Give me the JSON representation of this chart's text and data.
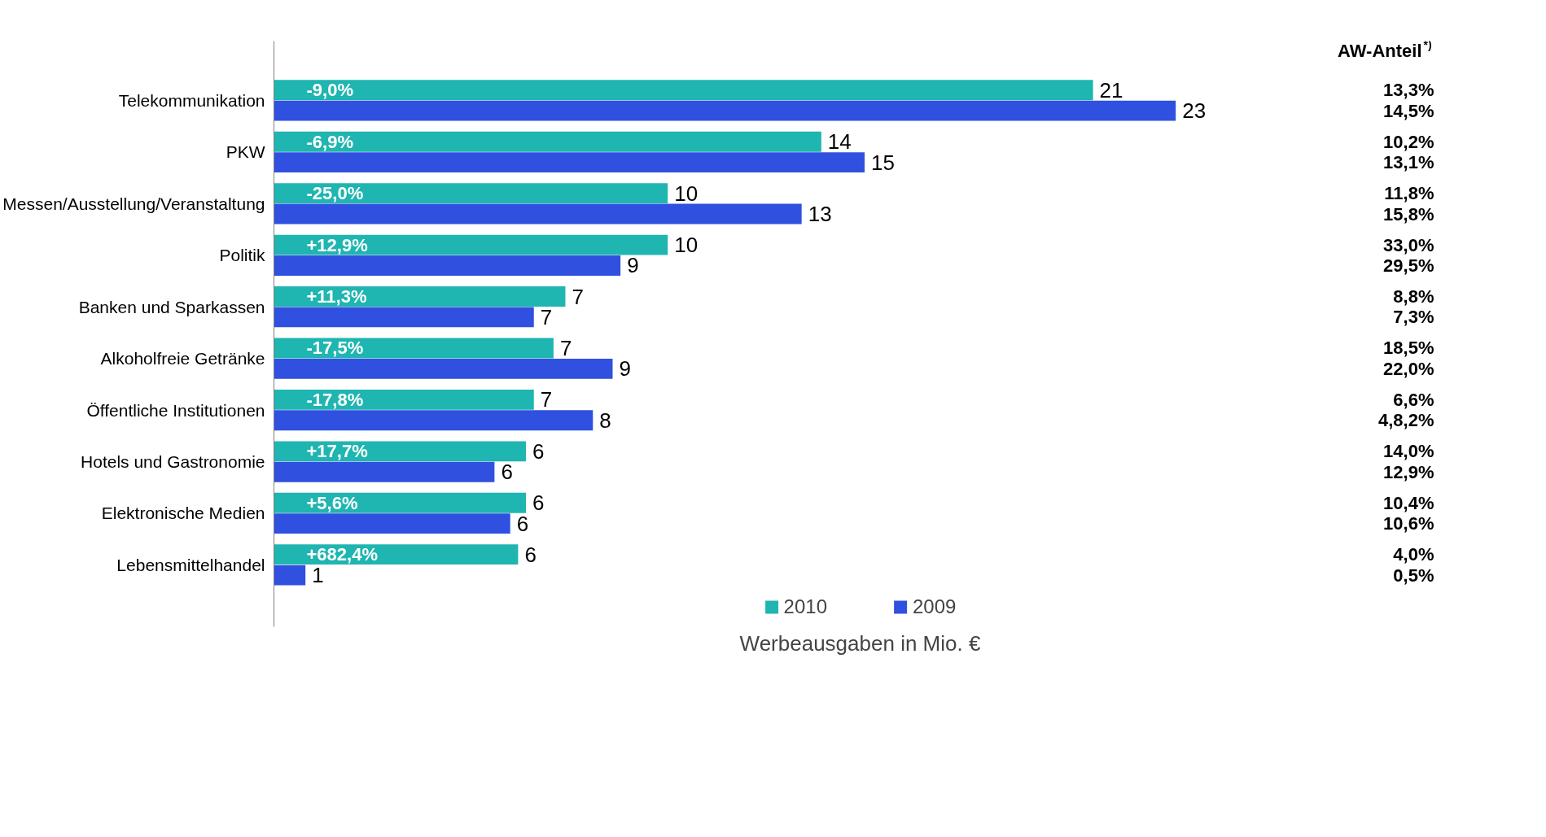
{
  "chart_data": {
    "type": "bar",
    "orientation": "horizontal",
    "categories": [
      "Telekommunikation",
      "PKW",
      "Messen/Ausstellung/Veranstaltung",
      "Politik",
      "Banken und Sparkassen",
      "Alkoholfreie Getränke",
      "Öffentliche Institutionen",
      "Hotels und Gastronomie",
      "Elektronische Medien",
      "Lebensmittelhandel"
    ],
    "series": [
      {
        "name": "2010",
        "color": "#1fb5b0",
        "values": [
          20.8,
          13.9,
          10.0,
          10.0,
          7.4,
          7.1,
          6.6,
          6.4,
          6.4,
          6.2
        ],
        "value_labels": [
          "21",
          "14",
          "10",
          "10",
          "7",
          "7",
          "7",
          "6",
          "6",
          "6"
        ]
      },
      {
        "name": "2009",
        "color": "#3050e0",
        "values": [
          22.9,
          15.0,
          13.4,
          8.8,
          6.6,
          8.6,
          8.1,
          5.6,
          6.0,
          0.8
        ],
        "value_labels": [
          "23",
          "15",
          "13",
          "9",
          "7",
          "9",
          "8",
          "6",
          "6",
          "1"
        ]
      }
    ],
    "tick_labels": "y",
    "grid": false,
    "legend": "bottom",
    "xlabel": "Werbeausgaben in Mio. €",
    "annotations": [
      "AW-Anteil$^{*)}$",
      "13,3%",
      "14,5%",
      "10,2%",
      "13,1%",
      "11,8%",
      "15,8%",
      "33,0%",
      "29,5%",
      "8,8%",
      "7,3%",
      "18,5%",
      "22,0%",
      "6,6%",
      "4,8,2%",
      "14,0%",
      "12,9%",
      "10,4%",
      "10,6%",
      "4,0%",
      "0,5%",
      {
        "text": "-9,0%",
        "y": "Telekommunikation"
      },
      {
        "text": "-6,9%",
        "y": "PKW"
      },
      {
        "text": "-25,0%",
        "y": "Messen/Ausstellung/Veranstaltung"
      },
      {
        "text": "+12,9%",
        "y": "Politik"
      },
      {
        "text": "+11,3%",
        "y": "Banken und Sparkassen"
      },
      {
        "text": "-17,5%",
        "y": "Alkoholfreie Getränke"
      },
      {
        "text": "-17,8%",
        "y": "Öffentliche Institutionen"
      },
      {
        "text": "+17,7%",
        "y": "Hotels und Gastronomie"
      },
      {
        "text": "+5,6%",
        "y": "Elektronische Medien"
      },
      {
        "text": "+682,4%",
        "y": "Lebensmittelhandel"
      }
    ]
  }
}
